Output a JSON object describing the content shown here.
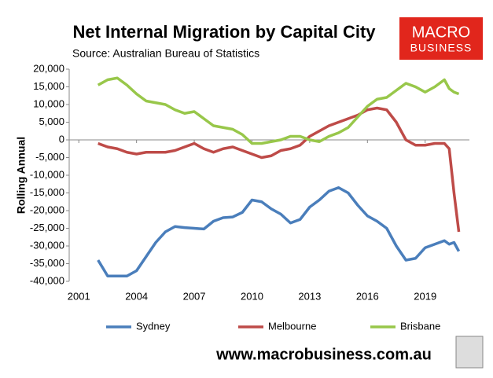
{
  "chart_data": {
    "type": "line",
    "title": "Net Internal Migration by Capital City",
    "subtitle": "Source: Australian Bureau of Statistics",
    "y_label": "Rolling Annual",
    "x": [
      2002,
      2002.5,
      2003,
      2003.5,
      2004,
      2004.5,
      2005,
      2005.5,
      2006,
      2006.5,
      2007,
      2007.5,
      2008,
      2008.5,
      2009,
      2009.5,
      2010,
      2010.5,
      2011,
      2011.5,
      2012,
      2012.5,
      2013,
      2013.5,
      2014,
      2014.5,
      2015,
      2015.5,
      2016,
      2016.5,
      2017,
      2017.5,
      2018,
      2018.5,
      2019,
      2019.5,
      2020,
      2020.25,
      2020.5,
      2020.75
    ],
    "series": [
      {
        "name": "Sydney",
        "color": "#4a7ebb",
        "values": [
          -34000,
          -38500,
          -38500,
          -38500,
          -37000,
          -33000,
          -29000,
          -26000,
          -24500,
          -24800,
          -25000,
          -25200,
          -23000,
          -22000,
          -21800,
          -20500,
          -17000,
          -17500,
          -19500,
          -21000,
          -23500,
          -22500,
          -19000,
          -17000,
          -14500,
          -13500,
          -15000,
          -18500,
          -21500,
          -23000,
          -25000,
          -30000,
          -34000,
          -33500,
          -30500,
          -29500,
          -28500,
          -29500,
          -29000,
          -31500
        ]
      },
      {
        "name": "Melbourne",
        "color": "#be4b48",
        "values": [
          -1000,
          -2000,
          -2500,
          -3500,
          -4000,
          -3500,
          -3500,
          -3500,
          -3000,
          -2000,
          -1000,
          -2500,
          -3500,
          -2500,
          -2000,
          -3000,
          -4000,
          -5000,
          -4500,
          -3000,
          -2500,
          -1500,
          1000,
          2500,
          4000,
          5000,
          6000,
          7000,
          8500,
          9000,
          8500,
          5000,
          0,
          -1500,
          -1500,
          -1000,
          -1000,
          -2500,
          -15000,
          -26000
        ]
      },
      {
        "name": "Brisbane",
        "color": "#98c74a",
        "values": [
          15500,
          17000,
          17500,
          15500,
          13000,
          11000,
          10500,
          10000,
          8500,
          7500,
          8000,
          6000,
          4000,
          3500,
          3000,
          1500,
          -1000,
          -1000,
          -500,
          0,
          1000,
          1000,
          0,
          -500,
          1000,
          2000,
          3500,
          6500,
          9500,
          11500,
          12000,
          14000,
          16000,
          15000,
          13500,
          15000,
          17000,
          14500,
          13500,
          13000
        ]
      }
    ],
    "xlim": [
      2000.5,
      2021.3
    ],
    "xticks": [
      2001,
      2004,
      2007,
      2010,
      2013,
      2016,
      2019
    ],
    "ylim": [
      -40000,
      20000
    ],
    "yticks": [
      {
        "value": -40000,
        "label": "-40,000"
      },
      {
        "value": -35000,
        "label": "-35,000"
      },
      {
        "value": -30000,
        "label": "-30,000"
      },
      {
        "value": -25000,
        "label": "-25,000"
      },
      {
        "value": -20000,
        "label": "-20,000"
      },
      {
        "value": -15000,
        "label": "-15,000"
      },
      {
        "value": -10000,
        "label": "-10,000"
      },
      {
        "value": -5000,
        "label": "-5,000"
      },
      0,
      {
        "value": 5000,
        "label": "5,000"
      },
      {
        "value": 10000,
        "label": "10,000"
      },
      {
        "value": 15000,
        "label": "15,000"
      },
      {
        "value": 20000,
        "label": "20,000"
      }
    ],
    "grid": false,
    "legend": "bottom"
  },
  "branding": {
    "logo_line1": "MACRO",
    "logo_line2": "BUSINESS",
    "website": "www.macrobusiness.com.au"
  }
}
